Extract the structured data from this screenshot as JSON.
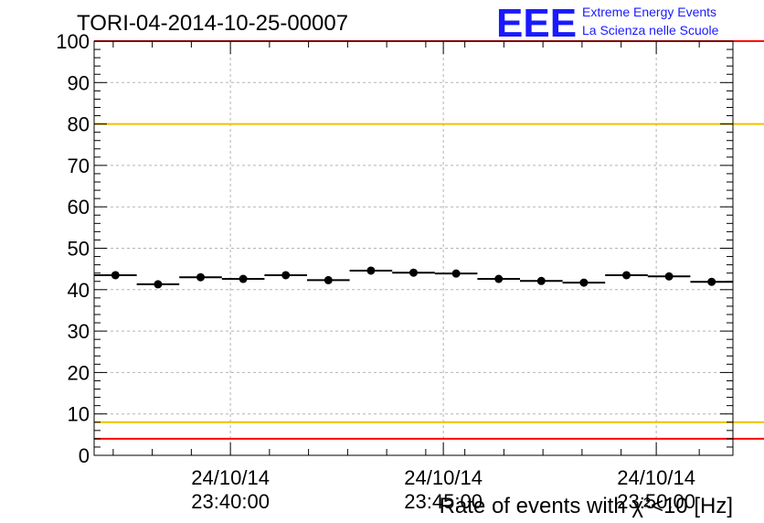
{
  "chart_data": {
    "type": "scatter",
    "title": "TORI-04-2014-10-25-00007",
    "xlabel": "Rate of events with χ²<10 [Hz]",
    "ylabel": "",
    "xlim": [
      0,
      15
    ],
    "ylim": [
      0,
      100
    ],
    "y_ticks": [
      "0",
      "10",
      "20",
      "30",
      "40",
      "50",
      "60",
      "70",
      "80",
      "90",
      "100"
    ],
    "x_ticks": [
      {
        "at": 3.2,
        "date": "24/10/14",
        "time": "23:40:00"
      },
      {
        "at": 8.2,
        "date": "24/10/14",
        "time": "23:45:00"
      },
      {
        "at": 13.2,
        "date": "24/10/14",
        "time": "23:50:00"
      }
    ],
    "points": [
      {
        "x": 0.5,
        "y": 43.5
      },
      {
        "x": 1.5,
        "y": 41.3
      },
      {
        "x": 2.5,
        "y": 43.0
      },
      {
        "x": 3.5,
        "y": 42.6
      },
      {
        "x": 4.5,
        "y": 43.5
      },
      {
        "x": 5.5,
        "y": 42.3
      },
      {
        "x": 6.5,
        "y": 44.6
      },
      {
        "x": 7.5,
        "y": 44.1
      },
      {
        "x": 8.5,
        "y": 43.9
      },
      {
        "x": 9.5,
        "y": 42.6
      },
      {
        "x": 10.5,
        "y": 42.1
      },
      {
        "x": 11.5,
        "y": 41.7
      },
      {
        "x": 12.5,
        "y": 43.5
      },
      {
        "x": 13.5,
        "y": 43.2
      },
      {
        "x": 14.5,
        "y": 41.9
      }
    ],
    "bin_half_width": 0.5,
    "reference_lines": [
      {
        "y": 4,
        "color": "#ff0000"
      },
      {
        "y": 8,
        "color": "#f0c000"
      },
      {
        "y": 80,
        "color": "#f0c000"
      },
      {
        "y": 100,
        "color": "#ff0000"
      }
    ],
    "grid": true
  },
  "logo": {
    "mark": "EEE",
    "line1": "Extreme Energy Events",
    "line2": "La Scienza nelle Scuole"
  }
}
